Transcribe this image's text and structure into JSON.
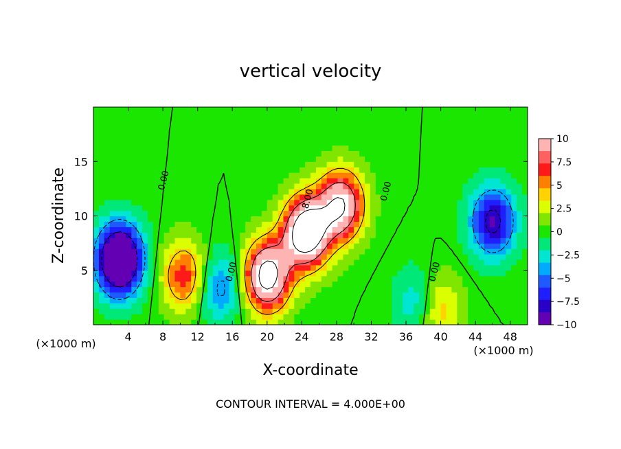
{
  "chart_data": {
    "type": "heatmap",
    "title": "vertical velocity",
    "xlabel": "X-coordinate",
    "ylabel": "Z-coordinate",
    "x_unit_left": "(×1000 m)",
    "x_unit_right": "(×1000 m)",
    "footer": "CONTOUR INTERVAL = 4.000E+00",
    "xlim": [
      0,
      50
    ],
    "ylim": [
      0,
      20
    ],
    "x_ticks": [
      4,
      8,
      12,
      16,
      20,
      24,
      28,
      32,
      36,
      40,
      44,
      48
    ],
    "x_tick_labels": [
      "4",
      "8",
      "12",
      "16",
      "20",
      "24",
      "28",
      "32",
      "36",
      "40",
      "44",
      "48"
    ],
    "y_ticks": [
      5,
      10,
      15
    ],
    "y_tick_labels": [
      "5",
      "10",
      "15"
    ],
    "colorbar": {
      "range": [
        -10,
        10
      ],
      "tick_values": [
        10,
        7.5,
        5,
        2.5,
        0,
        -2.5,
        -5,
        -7.5,
        -10
      ],
      "tick_labels": [
        "10",
        "7.5",
        "5",
        "2.5",
        "0",
        "−2.5",
        "−5",
        "−7.5",
        "−10"
      ],
      "colors": [
        "#ffb4b4",
        "#ff6060",
        "#ff1a1a",
        "#ff8000",
        "#ffd200",
        "#dcff00",
        "#80e600",
        "#1ae600",
        "#00e878",
        "#00e6d2",
        "#00aaff",
        "#1e5aff",
        "#1e1eff",
        "#2800c8",
        "#6400b4"
      ]
    },
    "contour_labels": [
      {
        "text": "0.00",
        "x": 8.4,
        "z": 13.2
      },
      {
        "text": "8.00",
        "x": 25.0,
        "z": 11.5
      },
      {
        "text": "0.00",
        "x": 34.0,
        "z": 12.2
      },
      {
        "text": "0.00",
        "x": 16.2,
        "z": 4.8
      },
      {
        "text": "0.00",
        "x": 39.6,
        "z": 4.8
      }
    ],
    "field_features": [
      {
        "type": "updraft",
        "x": 24.5,
        "z": 8.5,
        "peak": 16
      },
      {
        "type": "updraft",
        "x": 20.0,
        "z": 4.5,
        "peak": 14
      },
      {
        "type": "updraft",
        "x": 28.5,
        "z": 11.0,
        "peak": 12
      },
      {
        "type": "updraft",
        "x": 10.5,
        "z": 4.5,
        "peak": 7
      },
      {
        "type": "updraft",
        "x": 39.7,
        "z": 1.5,
        "peak": 5
      },
      {
        "type": "downdraft",
        "x": 3.0,
        "z": 6.0,
        "peak": -15
      },
      {
        "type": "downdraft",
        "x": 46.0,
        "z": 9.5,
        "peak": -9
      },
      {
        "type": "downdraft",
        "x": 14.5,
        "z": 3.5,
        "peak": -5
      },
      {
        "type": "downdraft",
        "x": 37.5,
        "z": 2.0,
        "peak": -4
      }
    ]
  }
}
